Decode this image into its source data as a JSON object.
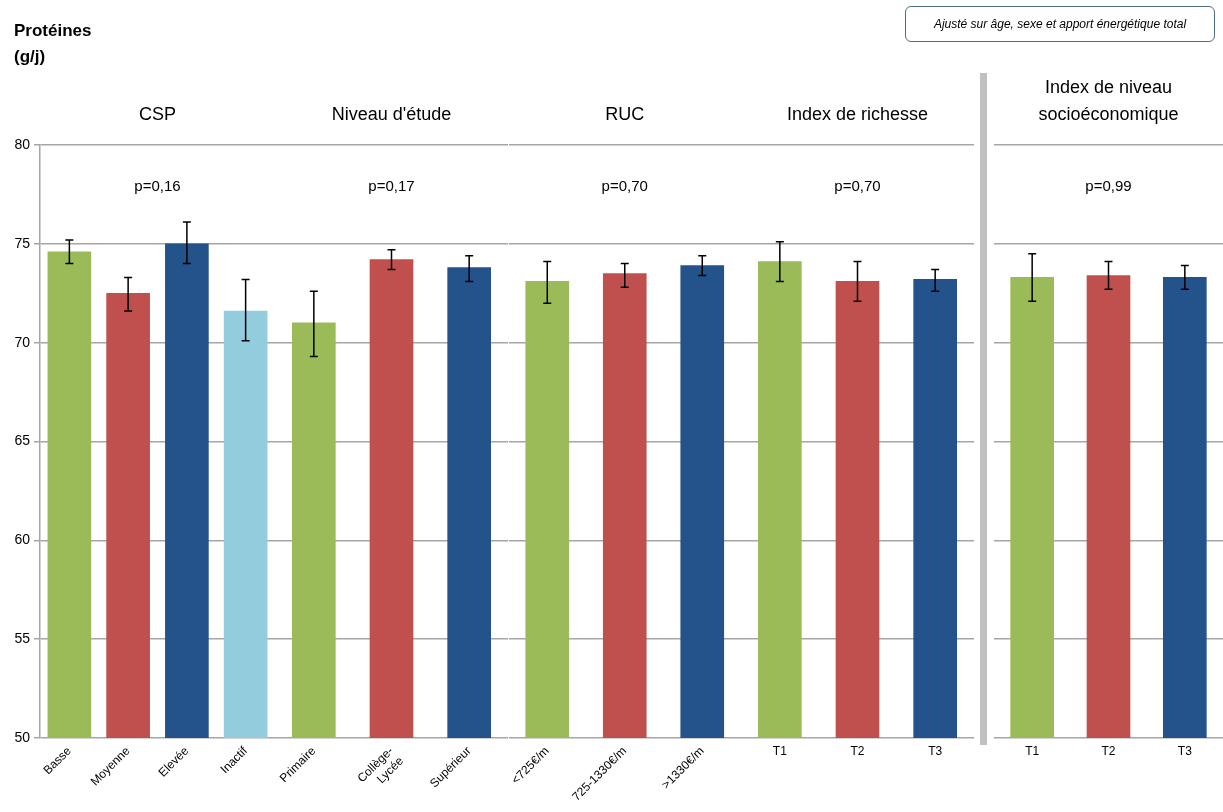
{
  "chart_data": [
    {
      "type": "bar",
      "title": "CSP",
      "ylabel": "Protéines (g/j)",
      "annotations": [
        "p=0,16",
        "Ajusté sur âge, sexe et apport énergétique total"
      ],
      "categories": [
        "Basse",
        "Moyenne",
        "Elevée",
        "Inactif"
      ],
      "values": [
        74.6,
        72.5,
        75.0,
        71.6
      ],
      "colors": [
        "#9bbb59",
        "#c0504d",
        "#23538a",
        "#93cddd"
      ],
      "errors": [
        [
          74.0,
          75.2
        ],
        [
          71.6,
          73.3
        ],
        [
          74.0,
          76.1
        ],
        [
          70.1,
          73.2
        ]
      ],
      "ylim": [
        50,
        80
      ],
      "yticks": [
        50,
        55,
        60,
        65,
        70,
        75,
        80
      ],
      "grid": "y",
      "legend": false
    },
    {
      "type": "bar",
      "title": "Niveau d'étude",
      "annotations": [
        "p=0,17"
      ],
      "categories": [
        "Primaire",
        "Collège-Lycée",
        "Supérieur"
      ],
      "values": [
        71.0,
        74.2,
        73.8
      ],
      "colors": [
        "#9bbb59",
        "#c0504d",
        "#23538a"
      ],
      "errors": [
        [
          69.3,
          72.6
        ],
        [
          73.7,
          74.7
        ],
        [
          73.1,
          74.4
        ]
      ],
      "ylim": [
        50,
        80
      ],
      "yticks": [
        50,
        55,
        60,
        65,
        70,
        75,
        80
      ],
      "grid": "y",
      "legend": false,
      "tick_labels": "x"
    },
    {
      "type": "bar",
      "title": "RUC",
      "annotations": [
        "p=0,70"
      ],
      "categories": [
        "<725€/m",
        "725-1330€/m",
        ">1330€/m"
      ],
      "values": [
        73.1,
        73.5,
        73.9
      ],
      "colors": [
        "#9bbb59",
        "#c0504d",
        "#23538a"
      ],
      "errors": [
        [
          72.0,
          74.1
        ],
        [
          72.8,
          74.0
        ],
        [
          73.4,
          74.4
        ]
      ],
      "ylim": [
        50,
        80
      ],
      "yticks": [
        50,
        55,
        60,
        65,
        70,
        75,
        80
      ],
      "grid": "y",
      "legend": false,
      "tick_labels": "x"
    },
    {
      "type": "bar",
      "title": "Index de richesse",
      "annotations": [
        "p=0,70"
      ],
      "categories": [
        "T1",
        "T2",
        "T3"
      ],
      "values": [
        74.1,
        73.1,
        73.2
      ],
      "colors": [
        "#9bbb59",
        "#c0504d",
        "#23538a"
      ],
      "errors": [
        [
          73.1,
          75.1
        ],
        [
          72.1,
          74.1
        ],
        [
          72.6,
          73.7
        ]
      ],
      "ylim": [
        50,
        80
      ],
      "yticks": [
        50,
        55,
        60,
        65,
        70,
        75,
        80
      ],
      "grid": "y",
      "legend": false,
      "tick_labels": "x"
    },
    {
      "type": "bar",
      "title": "Index de niveau socioéconomique",
      "annotations": [
        "p=0,99"
      ],
      "categories": [
        "T1",
        "T2",
        "T3"
      ],
      "values": [
        73.3,
        73.4,
        73.3
      ],
      "colors": [
        "#9bbb59",
        "#c0504d",
        "#23538a"
      ],
      "errors": [
        [
          72.1,
          74.5
        ],
        [
          72.7,
          74.1
        ],
        [
          72.7,
          73.9
        ]
      ],
      "ylim": [
        50,
        80
      ],
      "yticks": [
        50,
        55,
        60,
        65,
        70,
        75,
        80
      ],
      "grid": "y",
      "legend": false,
      "tick_labels": "x"
    }
  ]
}
